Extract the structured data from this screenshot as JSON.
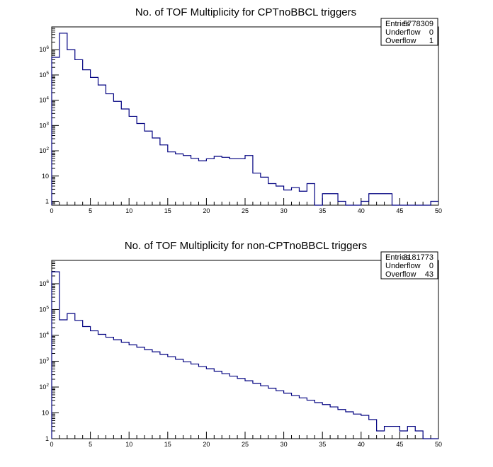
{
  "chart_data": [
    {
      "type": "histogram",
      "title": "No. of TOF Multiplicity for CPTnoBBCL triggers",
      "xlabel": "",
      "ylabel": "",
      "xlim": [
        0,
        50
      ],
      "ylim": [
        0.7,
        8000000
      ],
      "log_y": true,
      "bin_width": 1,
      "x_ticks": [
        0,
        5,
        10,
        15,
        20,
        25,
        30,
        35,
        40,
        45,
        50
      ],
      "x_tick_labels": [
        "0",
        "5",
        "10",
        "15",
        "20",
        "25",
        "30",
        "35",
        "40",
        "45",
        "50"
      ],
      "y_ticks": [
        1,
        10,
        100,
        1000,
        10000,
        100000,
        1000000
      ],
      "y_tick_labels": [
        {
          "base": "1",
          "exp": ""
        },
        {
          "base": "10",
          "exp": ""
        },
        {
          "base": "10",
          "exp": "2"
        },
        {
          "base": "10",
          "exp": "3"
        },
        {
          "base": "10",
          "exp": "4"
        },
        {
          "base": "10",
          "exp": "5"
        },
        {
          "base": "10",
          "exp": "6"
        }
      ],
      "line_color": "#000080",
      "values": [
        500000,
        4500000,
        1000000,
        400000,
        160000,
        80000,
        40000,
        18000,
        9000,
        4500,
        2300,
        1200,
        600,
        320,
        170,
        90,
        75,
        65,
        50,
        40,
        48,
        60,
        55,
        48,
        48,
        65,
        13,
        9,
        5,
        4,
        2.8,
        3.5,
        2.5,
        5,
        0,
        2,
        2,
        1,
        0,
        0,
        1,
        2,
        2,
        2,
        0,
        0,
        0,
        0,
        0,
        1
      ],
      "stats": [
        {
          "label": "Entries",
          "value": "5778309"
        },
        {
          "label": "Underflow",
          "value": "0"
        },
        {
          "label": "Overflow",
          "value": "1"
        }
      ]
    },
    {
      "type": "histogram",
      "title": "No. of TOF Multiplicity for non-CPTnoBBCL triggers",
      "xlabel": "",
      "ylabel": "",
      "xlim": [
        0,
        50
      ],
      "ylim": [
        1,
        8000000
      ],
      "log_y": true,
      "bin_width": 1,
      "x_ticks": [
        0,
        5,
        10,
        15,
        20,
        25,
        30,
        35,
        40,
        45,
        50
      ],
      "x_tick_labels": [
        "0",
        "5",
        "10",
        "15",
        "20",
        "25",
        "30",
        "35",
        "40",
        "45",
        "50"
      ],
      "y_ticks": [
        1,
        10,
        100,
        1000,
        10000,
        100000,
        1000000
      ],
      "y_tick_labels": [
        {
          "base": "1",
          "exp": ""
        },
        {
          "base": "10",
          "exp": ""
        },
        {
          "base": "10",
          "exp": "2"
        },
        {
          "base": "10",
          "exp": "3"
        },
        {
          "base": "10",
          "exp": "4"
        },
        {
          "base": "10",
          "exp": "5"
        },
        {
          "base": "10",
          "exp": "6"
        }
      ],
      "line_color": "#000080",
      "values": [
        2900000,
        40000,
        70000,
        38000,
        22000,
        15000,
        11000,
        8500,
        6800,
        5400,
        4300,
        3500,
        2800,
        2300,
        1850,
        1500,
        1200,
        950,
        780,
        620,
        510,
        410,
        330,
        265,
        215,
        175,
        140,
        112,
        90,
        72,
        58,
        47,
        38,
        31,
        25,
        21,
        17,
        13.5,
        11,
        9,
        8,
        5.5,
        2,
        3,
        3,
        2,
        3,
        2,
        1,
        0
      ],
      "stats": [
        {
          "label": "Entries",
          "value": "3181773"
        },
        {
          "label": "Underflow",
          "value": "0"
        },
        {
          "label": "Overflow",
          "value": "43"
        }
      ]
    }
  ]
}
